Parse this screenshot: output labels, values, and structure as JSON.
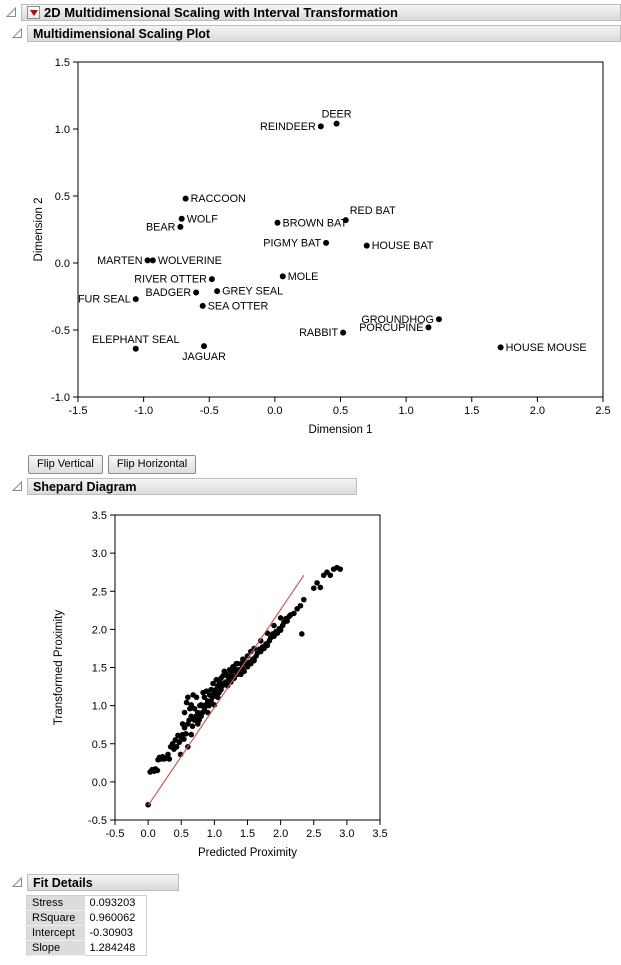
{
  "sections": {
    "main_title": "2D Multidimensional Scaling with Interval Transformation",
    "mds_title": "Multidimensional Scaling Plot",
    "shepard_title": "Shepard Diagram",
    "fit_title": "Fit Details"
  },
  "buttons": {
    "flip_vertical": "Flip Vertical",
    "flip_horizontal": "Flip Horizontal"
  },
  "colors": {
    "point": "#000000",
    "fit_line": "#cc5a50",
    "red_triangle": "#cc0000"
  },
  "chart_data": [
    {
      "type": "scatter",
      "title": "Multidimensional Scaling Plot",
      "xlabel": "Dimension 1",
      "ylabel": "Dimension 2",
      "xlim": [
        -1.5,
        2.5
      ],
      "ylim": [
        -1.0,
        1.5
      ],
      "xticks": [
        -1.5,
        -1.0,
        -0.5,
        0.0,
        0.5,
        1.0,
        1.5,
        2.0,
        2.5
      ],
      "yticks": [
        -1.0,
        -0.5,
        0.0,
        0.5,
        1.0,
        1.5
      ],
      "grid": false,
      "points": [
        {
          "label": "DEER",
          "x": 0.47,
          "y": 1.04,
          "pos": "above"
        },
        {
          "label": "REINDEER",
          "x": 0.35,
          "y": 1.02,
          "pos": "left"
        },
        {
          "label": "RACCOON",
          "x": -0.68,
          "y": 0.48,
          "pos": "right"
        },
        {
          "label": "WOLF",
          "x": -0.71,
          "y": 0.33,
          "pos": "right"
        },
        {
          "label": "BEAR",
          "x": -0.72,
          "y": 0.27,
          "pos": "left"
        },
        {
          "label": "RED BAT",
          "x": 0.54,
          "y": 0.32,
          "pos": "above-right"
        },
        {
          "label": "BROWN BAT",
          "x": 0.02,
          "y": 0.3,
          "pos": "right"
        },
        {
          "label": "PIGMY BAT",
          "x": 0.39,
          "y": 0.15,
          "pos": "left"
        },
        {
          "label": "HOUSE BAT",
          "x": 0.7,
          "y": 0.13,
          "pos": "right"
        },
        {
          "label": "MARTEN",
          "x": -0.97,
          "y": 0.02,
          "pos": "left"
        },
        {
          "label": "WOLVERINE",
          "x": -0.93,
          "y": 0.02,
          "pos": "right"
        },
        {
          "label": "RIVER OTTER",
          "x": -0.48,
          "y": -0.12,
          "pos": "left"
        },
        {
          "label": "MOLE",
          "x": 0.06,
          "y": -0.1,
          "pos": "right"
        },
        {
          "label": "BADGER",
          "x": -0.6,
          "y": -0.22,
          "pos": "left"
        },
        {
          "label": "GREY SEAL",
          "x": -0.44,
          "y": -0.21,
          "pos": "right"
        },
        {
          "label": "SEA OTTER",
          "x": -0.55,
          "y": -0.32,
          "pos": "right"
        },
        {
          "label": "FUR SEAL",
          "x": -1.06,
          "y": -0.27,
          "pos": "left"
        },
        {
          "label": "ELEPHANT SEAL",
          "x": -1.06,
          "y": -0.64,
          "pos": "above"
        },
        {
          "label": "JAGUAR",
          "x": -0.54,
          "y": -0.62,
          "pos": "below"
        },
        {
          "label": "RABBIT",
          "x": 0.52,
          "y": -0.52,
          "pos": "left"
        },
        {
          "label": "GROUNDHOG",
          "x": 1.25,
          "y": -0.42,
          "pos": "left"
        },
        {
          "label": "PORCUPINE",
          "x": 1.17,
          "y": -0.48,
          "pos": "left"
        },
        {
          "label": "HOUSE MOUSE",
          "x": 1.72,
          "y": -0.63,
          "pos": "right"
        }
      ]
    },
    {
      "type": "scatter",
      "title": "Shepard Diagram",
      "xlabel": "Predicted Proximity",
      "ylabel": "Transformed Proximity",
      "xlim": [
        -0.5,
        3.5
      ],
      "ylim": [
        -0.5,
        3.5
      ],
      "xticks": [
        -0.5,
        0.0,
        0.5,
        1.0,
        1.5,
        2.0,
        2.5,
        3.0,
        3.5
      ],
      "yticks": [
        -0.5,
        0.0,
        0.5,
        1.0,
        1.5,
        2.0,
        2.5,
        3.0,
        3.5
      ],
      "grid": false,
      "fit_line": {
        "intercept": -0.30903,
        "slope": 1.284248,
        "x_start": 0.0,
        "x_end": 2.35
      },
      "points": [
        [
          0.0,
          -0.3
        ],
        [
          0.03,
          0.13
        ],
        [
          0.06,
          0.16
        ],
        [
          0.09,
          0.14
        ],
        [
          0.11,
          0.17
        ],
        [
          0.14,
          0.15
        ],
        [
          0.15,
          0.29
        ],
        [
          0.17,
          0.32
        ],
        [
          0.19,
          0.3
        ],
        [
          0.22,
          0.33
        ],
        [
          0.24,
          0.3
        ],
        [
          0.27,
          0.31
        ],
        [
          0.3,
          0.36
        ],
        [
          0.32,
          0.3
        ],
        [
          0.34,
          0.46
        ],
        [
          0.37,
          0.5
        ],
        [
          0.39,
          0.43
        ],
        [
          0.41,
          0.55
        ],
        [
          0.43,
          0.46
        ],
        [
          0.45,
          0.61
        ],
        [
          0.47,
          0.52
        ],
        [
          0.49,
          0.36
        ],
        [
          0.5,
          0.56
        ],
        [
          0.52,
          0.62
        ],
        [
          0.52,
          0.76
        ],
        [
          0.54,
          0.56
        ],
        [
          0.55,
          0.71
        ],
        [
          0.55,
          0.91
        ],
        [
          0.57,
          0.63
        ],
        [
          0.58,
          1.04
        ],
        [
          0.6,
          0.46
        ],
        [
          0.6,
          0.76
        ],
        [
          0.6,
          1.11
        ],
        [
          0.62,
          0.81
        ],
        [
          0.63,
          0.96
        ],
        [
          0.65,
          0.62
        ],
        [
          0.65,
          0.86
        ],
        [
          0.65,
          1.01
        ],
        [
          0.67,
          0.73
        ],
        [
          0.68,
          1.14
        ],
        [
          0.7,
          0.81
        ],
        [
          0.7,
          0.96
        ],
        [
          0.72,
          0.86
        ],
        [
          0.73,
          1.11
        ],
        [
          0.75,
          0.76
        ],
        [
          0.75,
          0.91
        ],
        [
          0.77,
          0.81
        ],
        [
          0.78,
          1.0
        ],
        [
          0.8,
          0.86
        ],
        [
          0.8,
          1.01
        ],
        [
          0.82,
          0.91
        ],
        [
          0.83,
          1.17
        ],
        [
          0.85,
          0.96
        ],
        [
          0.85,
          1.11
        ],
        [
          0.87,
          1.01
        ],
        [
          0.88,
          1.19
        ],
        [
          0.9,
          0.91
        ],
        [
          0.9,
          1.06
        ],
        [
          0.92,
          1.0
        ],
        [
          0.93,
          1.14
        ],
        [
          0.95,
          1.06
        ],
        [
          0.95,
          1.21
        ],
        [
          0.97,
          1.11
        ],
        [
          0.98,
          1.29
        ],
        [
          1.0,
          1.01
        ],
        [
          1.0,
          1.16
        ],
        [
          1.02,
          1.21
        ],
        [
          1.03,
          1.34
        ],
        [
          1.05,
          1.11
        ],
        [
          1.05,
          1.26
        ],
        [
          1.07,
          1.17
        ],
        [
          1.08,
          1.31
        ],
        [
          1.1,
          1.21
        ],
        [
          1.1,
          1.36
        ],
        [
          1.12,
          1.26
        ],
        [
          1.13,
          1.39
        ],
        [
          1.15,
          1.29
        ],
        [
          1.15,
          1.45
        ],
        [
          1.17,
          1.31
        ],
        [
          1.18,
          1.41
        ],
        [
          1.2,
          1.26
        ],
        [
          1.2,
          1.39
        ],
        [
          1.22,
          1.36
        ],
        [
          1.23,
          1.47
        ],
        [
          1.25,
          1.31
        ],
        [
          1.25,
          1.45
        ],
        [
          1.27,
          1.39
        ],
        [
          1.28,
          1.51
        ],
        [
          1.3,
          1.36
        ],
        [
          1.3,
          1.49
        ],
        [
          1.32,
          1.45
        ],
        [
          1.33,
          1.55
        ],
        [
          1.35,
          1.41
        ],
        [
          1.35,
          1.55
        ],
        [
          1.37,
          1.47
        ],
        [
          1.4,
          1.41
        ],
        [
          1.4,
          1.55
        ],
        [
          1.42,
          1.49
        ],
        [
          1.43,
          1.61
        ],
        [
          1.45,
          1.45
        ],
        [
          1.45,
          1.59
        ],
        [
          1.47,
          1.55
        ],
        [
          1.5,
          1.51
        ],
        [
          1.5,
          1.65
        ],
        [
          1.53,
          1.57
        ],
        [
          1.55,
          1.55
        ],
        [
          1.55,
          1.71
        ],
        [
          1.58,
          1.61
        ],
        [
          1.6,
          1.59
        ],
        [
          1.6,
          1.75
        ],
        [
          1.63,
          1.65
        ],
        [
          1.65,
          1.69
        ],
        [
          1.68,
          1.74
        ],
        [
          1.7,
          1.71
        ],
        [
          1.7,
          1.85
        ],
        [
          1.73,
          1.77
        ],
        [
          1.75,
          1.75
        ],
        [
          1.78,
          1.81
        ],
        [
          1.8,
          1.79
        ],
        [
          1.8,
          1.95
        ],
        [
          1.83,
          1.85
        ],
        [
          1.85,
          1.89
        ],
        [
          1.88,
          1.94
        ],
        [
          1.9,
          1.91
        ],
        [
          1.9,
          2.05
        ],
        [
          1.93,
          1.97
        ],
        [
          1.95,
          1.95
        ],
        [
          1.98,
          2.01
        ],
        [
          2.0,
          1.99
        ],
        [
          2.0,
          2.15
        ],
        [
          2.03,
          2.05
        ],
        [
          2.05,
          2.09
        ],
        [
          2.08,
          2.14
        ],
        [
          2.1,
          2.11
        ],
        [
          2.13,
          2.17
        ],
        [
          2.15,
          2.19
        ],
        [
          2.2,
          2.21
        ],
        [
          2.25,
          2.27
        ],
        [
          2.3,
          2.31
        ],
        [
          2.32,
          1.94
        ],
        [
          2.35,
          2.39
        ],
        [
          2.5,
          2.54
        ],
        [
          2.55,
          2.61
        ],
        [
          2.6,
          2.55
        ],
        [
          2.65,
          2.71
        ],
        [
          2.7,
          2.75
        ],
        [
          2.75,
          2.71
        ],
        [
          2.8,
          2.79
        ],
        [
          2.85,
          2.81
        ],
        [
          2.9,
          2.79
        ]
      ]
    }
  ],
  "fit_details": {
    "rows": [
      {
        "label": "Stress",
        "value": "0.093203"
      },
      {
        "label": "RSquare",
        "value": "0.960062"
      },
      {
        "label": "Intercept",
        "value": "-0.30903"
      },
      {
        "label": "Slope",
        "value": "1.284248"
      }
    ]
  }
}
